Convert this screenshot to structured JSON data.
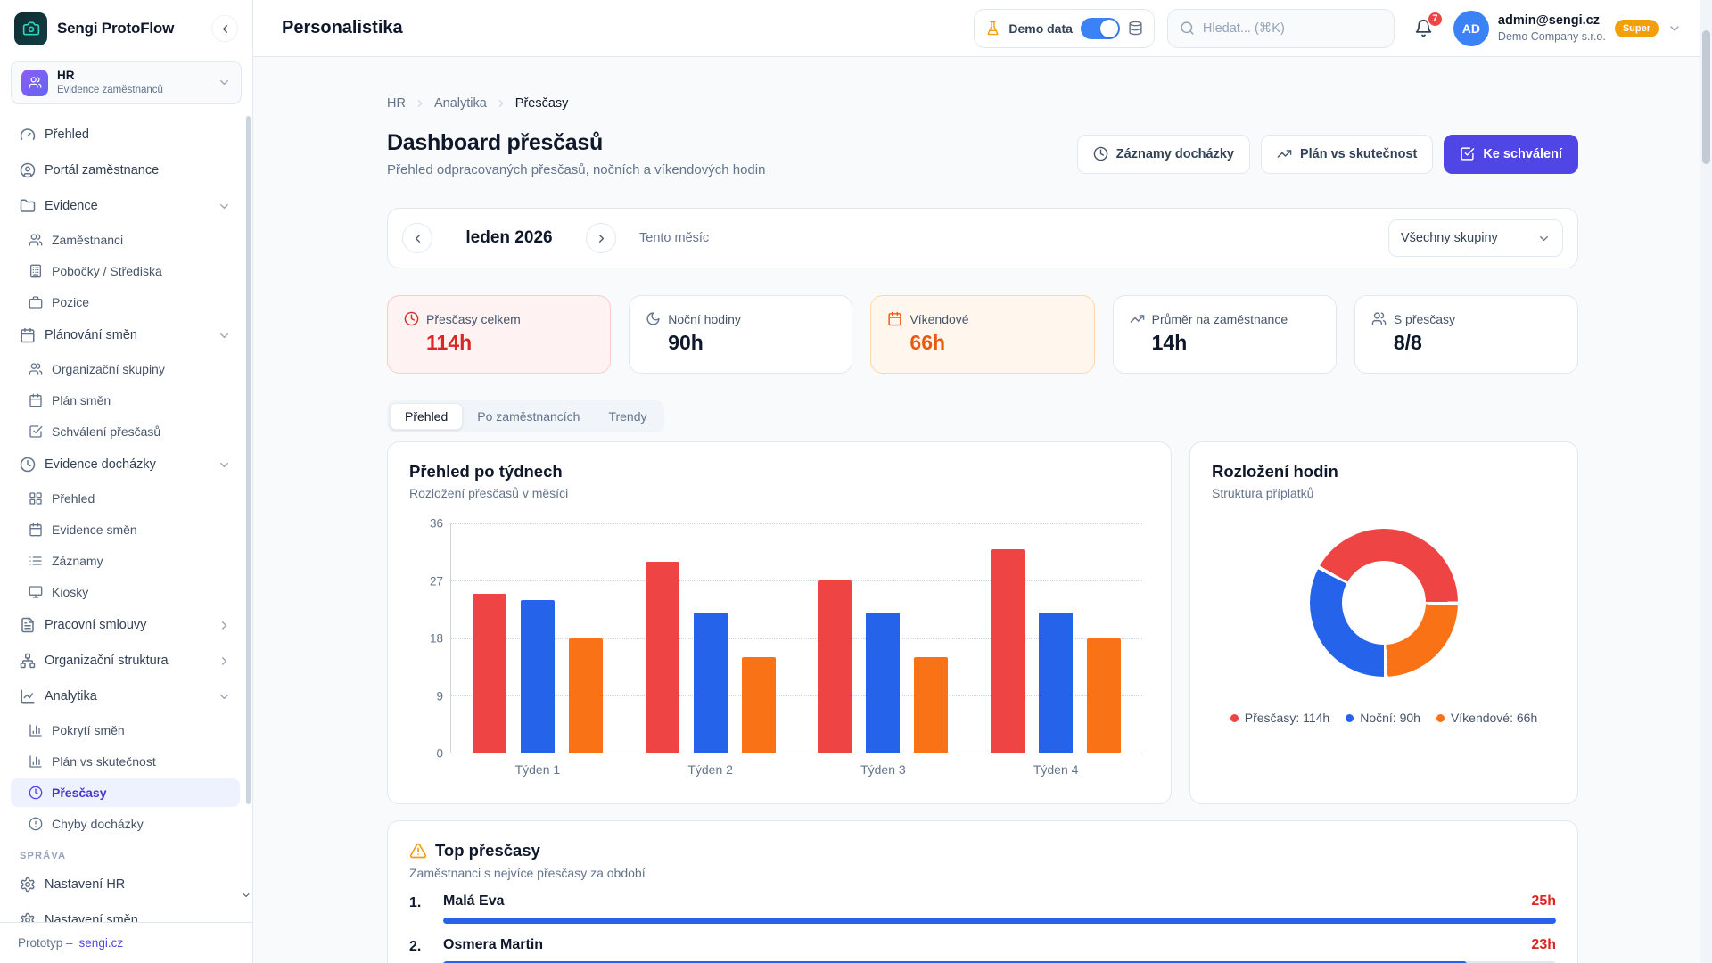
{
  "colors": {
    "primary": "#4f46e5",
    "accent_blue": "#3b82f6",
    "red": "#ef4444",
    "blue": "#2563eb",
    "orange": "#f97316",
    "amber": "#f59e0b"
  },
  "sidebar": {
    "brand": "Sengi ProtoFlow",
    "workspace": {
      "title": "HR",
      "subtitle": "Evidence zaměstnanců"
    },
    "items": [
      {
        "label": "Přehled",
        "icon": "gauge",
        "level": 0
      },
      {
        "label": "Portál zaměstnance",
        "icon": "user-circle",
        "level": 0
      },
      {
        "label": "Evidence",
        "icon": "folder",
        "level": 0,
        "chevron": "down"
      },
      {
        "label": "Zaměstnanci",
        "icon": "users",
        "level": 1
      },
      {
        "label": "Pobočky / Střediska",
        "icon": "building",
        "level": 1
      },
      {
        "label": "Pozice",
        "icon": "briefcase",
        "level": 1
      },
      {
        "label": "Plánování směn",
        "icon": "calendar",
        "level": 0,
        "chevron": "down"
      },
      {
        "label": "Organizační skupiny",
        "icon": "users",
        "level": 1
      },
      {
        "label": "Plán směn",
        "icon": "calendar",
        "level": 1
      },
      {
        "label": "Schválení přesčasů",
        "icon": "check-square",
        "level": 1
      },
      {
        "label": "Evidence docházky",
        "icon": "clock",
        "level": 0,
        "chevron": "down"
      },
      {
        "label": "Přehled",
        "icon": "layout-grid",
        "level": 1
      },
      {
        "label": "Evidence směn",
        "icon": "calendar",
        "level": 1
      },
      {
        "label": "Záznamy",
        "icon": "list",
        "level": 1
      },
      {
        "label": "Kiosky",
        "icon": "monitor",
        "level": 1
      },
      {
        "label": "Pracovní smlouvy",
        "icon": "file-text",
        "level": 0,
        "chevron": "right"
      },
      {
        "label": "Organizační struktura",
        "icon": "network",
        "level": 0,
        "chevron": "right"
      },
      {
        "label": "Analytika",
        "icon": "line-chart",
        "level": 0,
        "chevron": "down"
      },
      {
        "label": "Pokrytí směn",
        "icon": "bar-chart",
        "level": 1
      },
      {
        "label": "Plán vs skutečnost",
        "icon": "bar-chart",
        "level": 1
      },
      {
        "label": "Přesčasy",
        "icon": "clock",
        "level": 1,
        "active": true
      },
      {
        "label": "Chyby docházky",
        "icon": "alert-circle",
        "level": 1
      },
      {
        "label": "SPRÁVA",
        "type": "section"
      },
      {
        "label": "Nastavení HR",
        "icon": "settings",
        "level": 0
      },
      {
        "label": "Nastavení směn",
        "icon": "settings",
        "level": 0
      }
    ],
    "footer": {
      "label": "Prototyp  –",
      "link": "sengi.cz"
    }
  },
  "header": {
    "title": "Personalistika",
    "demo_label": "Demo data",
    "demo_toggle_on": true,
    "search_placeholder": "Hledat... (⌘K)",
    "notifications_count": "7",
    "user": {
      "initials": "AD",
      "email": "admin@sengi.cz",
      "company": "Demo Company s.r.o.",
      "role_badge": "Super"
    }
  },
  "breadcrumb": [
    "HR",
    "Analytika",
    "Přesčasy"
  ],
  "page": {
    "title": "Dashboard přesčasů",
    "subtitle": "Přehled odpracovaných přesčasů, nočních a víkendových hodin",
    "actions": [
      {
        "label": "Záznamy docházky",
        "icon": "clock"
      },
      {
        "label": "Plán vs skutečnost",
        "icon": "trending-up"
      },
      {
        "label": "Ke schválení",
        "icon": "check-square",
        "primary": true
      }
    ]
  },
  "period": {
    "label": "leden 2026",
    "hint": "Tento měsíc",
    "filter_label": "Všechny skupiny"
  },
  "stats": [
    {
      "label": "Přesčasy celkem",
      "value": "114h",
      "icon": "clock",
      "variant": "red"
    },
    {
      "label": "Noční hodiny",
      "value": "90h",
      "icon": "moon",
      "variant": "default"
    },
    {
      "label": "Víkendové",
      "value": "66h",
      "icon": "calendar",
      "variant": "orange"
    },
    {
      "label": "Průměr na zaměstnance",
      "value": "14h",
      "icon": "trending-up",
      "variant": "default"
    },
    {
      "label": "S přesčasy",
      "value": "8/8",
      "icon": "users",
      "variant": "default"
    }
  ],
  "tabs": [
    {
      "label": "Přehled",
      "active": true
    },
    {
      "label": "Po zaměstnancích",
      "active": false
    },
    {
      "label": "Trendy",
      "active": false
    }
  ],
  "chart_data": [
    {
      "type": "bar",
      "title": "Přehled po týdnech",
      "subtitle": "Rozložení přesčasů v měsíci",
      "categories": [
        "Týden 1",
        "Týden 2",
        "Týden 3",
        "Týden 4"
      ],
      "series": [
        {
          "name": "Přesčasy",
          "color": "#ef4444",
          "values": [
            25,
            30,
            27,
            32
          ]
        },
        {
          "name": "Noční",
          "color": "#2563eb",
          "values": [
            24,
            22,
            22,
            22
          ]
        },
        {
          "name": "Víkendové",
          "color": "#f97316",
          "values": [
            18,
            15,
            15,
            18
          ]
        }
      ],
      "ylim": [
        0,
        36
      ],
      "yticks": [
        0,
        9,
        18,
        27,
        36
      ],
      "grid": "dotted-horizontal",
      "legend_position": "none"
    },
    {
      "type": "pie",
      "title": "Rozložení hodin",
      "subtitle": "Struktura příplatků",
      "donut": true,
      "slices": [
        {
          "label": "Přesčasy",
          "value": 114,
          "unit": "h",
          "color": "#ef4444",
          "legend": "Přesčasy: 114h"
        },
        {
          "label": "Noční",
          "value": 90,
          "unit": "h",
          "color": "#2563eb",
          "legend": "Noční: 90h"
        },
        {
          "label": "Víkendové",
          "value": 66,
          "unit": "h",
          "color": "#f97316",
          "legend": "Víkendové: 66h"
        }
      ],
      "legend_position": "bottom"
    }
  ],
  "top_overtime": {
    "title": "Top přesčasy",
    "subtitle": "Zaměstnanci s nejvíce přesčasy za období",
    "rows": [
      {
        "rank": "1.",
        "name": "Malá Eva",
        "value": "25h",
        "pct": 100
      },
      {
        "rank": "2.",
        "name": "Osmera Martin",
        "value": "23h",
        "pct": 92
      }
    ]
  }
}
